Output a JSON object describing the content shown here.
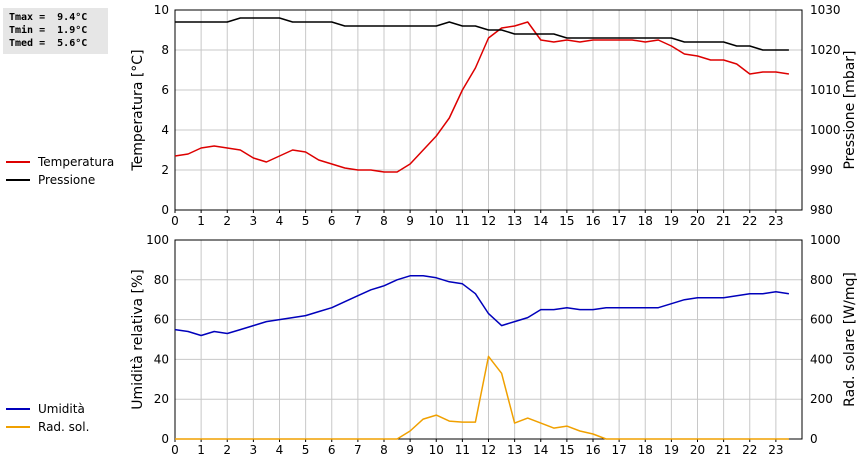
{
  "stats": {
    "tmax": "Tmax =  9.4°C",
    "tmin": "Tmin =  1.9°C",
    "tmed": "Tmed =  5.6°C"
  },
  "colors": {
    "temperature": "#dd0000",
    "pressure": "#000000",
    "humidity": "#0000bb",
    "radiation": "#f0a000",
    "grid": "#c8c8c8"
  },
  "chart_data": [
    {
      "type": "line",
      "xlim": [
        0,
        24
      ],
      "xticks": [
        "0",
        "1",
        "2",
        "3",
        "4",
        "5",
        "6",
        "7",
        "8",
        "9",
        "10",
        "11",
        "12",
        "13",
        "14",
        "15",
        "16",
        "17",
        "18",
        "19",
        "20",
        "21",
        "22",
        "23"
      ],
      "grid": true,
      "ylabel": "Temperatura [°C]",
      "ylim": [
        0,
        10
      ],
      "yticks": [
        "0",
        "2",
        "4",
        "6",
        "8",
        "10"
      ],
      "y2label": "Pressione [mbar]",
      "y2lim": [
        980,
        1030
      ],
      "y2ticks": [
        "980",
        "990",
        "1000",
        "1010",
        "1020",
        "1030"
      ],
      "legend": [
        "Temperatura",
        "Pressione"
      ],
      "series": [
        {
          "name": "Temperatura",
          "axis": "left",
          "x": [
            0,
            0.5,
            1,
            1.5,
            2,
            2.5,
            3,
            3.5,
            4,
            4.5,
            5,
            5.5,
            6,
            6.5,
            7,
            7.5,
            8,
            8.5,
            9,
            9.5,
            10,
            10.5,
            11,
            11.5,
            12,
            12.5,
            13,
            13.5,
            14,
            14.5,
            15,
            15.5,
            16,
            16.5,
            17,
            17.5,
            18,
            18.5,
            19,
            19.5,
            20,
            20.5,
            21,
            21.5,
            22,
            22.5,
            23,
            23.5
          ],
          "values": [
            2.7,
            2.8,
            3.1,
            3.2,
            3.1,
            3.0,
            2.6,
            2.4,
            2.7,
            3.0,
            2.9,
            2.5,
            2.3,
            2.1,
            2.0,
            2.0,
            1.9,
            1.9,
            2.3,
            3.0,
            3.7,
            4.6,
            6.0,
            7.1,
            8.6,
            9.1,
            9.2,
            9.4,
            8.5,
            8.4,
            8.5,
            8.4,
            8.5,
            8.5,
            8.5,
            8.5,
            8.4,
            8.5,
            8.2,
            7.8,
            7.7,
            7.5,
            7.5,
            7.3,
            6.8,
            6.9,
            6.9,
            6.8
          ]
        },
        {
          "name": "Pressione",
          "axis": "right",
          "x": [
            0,
            0.5,
            1,
            1.5,
            2,
            2.5,
            3,
            3.5,
            4,
            4.5,
            5,
            5.5,
            6,
            6.5,
            7,
            7.5,
            8,
            8.5,
            9,
            9.5,
            10,
            10.5,
            11,
            11.5,
            12,
            12.5,
            13,
            13.5,
            14,
            14.5,
            15,
            15.5,
            16,
            16.5,
            17,
            17.5,
            18,
            18.5,
            19,
            19.5,
            20,
            20.5,
            21,
            21.5,
            22,
            22.5,
            23,
            23.5
          ],
          "values": [
            1027,
            1027,
            1027,
            1027,
            1027,
            1028,
            1028,
            1028,
            1028,
            1027,
            1027,
            1027,
            1027,
            1026,
            1026,
            1026,
            1026,
            1026,
            1026,
            1026,
            1026,
            1027,
            1026,
            1026,
            1025,
            1025,
            1024,
            1024,
            1024,
            1024,
            1023,
            1023,
            1023,
            1023,
            1023,
            1023,
            1023,
            1023,
            1023,
            1022,
            1022,
            1022,
            1022,
            1021,
            1021,
            1020,
            1020,
            1020
          ]
        }
      ]
    },
    {
      "type": "line",
      "xlim": [
        0,
        24
      ],
      "xticks": [
        "0",
        "1",
        "2",
        "3",
        "4",
        "5",
        "6",
        "7",
        "8",
        "9",
        "10",
        "11",
        "12",
        "13",
        "14",
        "15",
        "16",
        "17",
        "18",
        "19",
        "20",
        "21",
        "22",
        "23"
      ],
      "grid": true,
      "ylabel": "Umidità relativa [%]",
      "ylim": [
        0,
        100
      ],
      "yticks": [
        "0",
        "20",
        "40",
        "60",
        "80",
        "100"
      ],
      "y2label": "Rad. solare [W/mq]",
      "y2lim": [
        0,
        1000
      ],
      "y2ticks": [
        "0",
        "200",
        "400",
        "600",
        "800",
        "1000"
      ],
      "legend": [
        "Umidità",
        "Rad. sol."
      ],
      "series": [
        {
          "name": "Umidità",
          "axis": "left",
          "x": [
            0,
            0.5,
            1,
            1.5,
            2,
            2.5,
            3,
            3.5,
            4,
            4.5,
            5,
            5.5,
            6,
            6.5,
            7,
            7.5,
            8,
            8.5,
            9,
            9.5,
            10,
            10.5,
            11,
            11.5,
            12,
            12.5,
            13,
            13.5,
            14,
            14.5,
            15,
            15.5,
            16,
            16.5,
            17,
            17.5,
            18,
            18.5,
            19,
            19.5,
            20,
            20.5,
            21,
            21.5,
            22,
            22.5,
            23,
            23.5
          ],
          "values": [
            55,
            54,
            52,
            54,
            53,
            55,
            57,
            59,
            60,
            61,
            62,
            64,
            66,
            69,
            72,
            75,
            77,
            80,
            82,
            82,
            81,
            79,
            78,
            73,
            63,
            57,
            59,
            61,
            65,
            65,
            66,
            65,
            65,
            66,
            66,
            66,
            66,
            66,
            68,
            70,
            71,
            71,
            71,
            72,
            73,
            73,
            74,
            73
          ]
        },
        {
          "name": "Rad. sol.",
          "axis": "right",
          "x": [
            0,
            0.5,
            1,
            1.5,
            2,
            2.5,
            3,
            3.5,
            4,
            4.5,
            5,
            5.5,
            6,
            6.5,
            7,
            7.5,
            8,
            8.5,
            9,
            9.5,
            10,
            10.5,
            11,
            11.5,
            12,
            12.5,
            13,
            13.5,
            14,
            14.5,
            15,
            15.5,
            16,
            16.5,
            17,
            17.5,
            18,
            18.5,
            19,
            19.5,
            20,
            20.5,
            21,
            21.5,
            22,
            22.5,
            23,
            23.5
          ],
          "values": [
            0,
            0,
            0,
            0,
            0,
            0,
            0,
            0,
            0,
            0,
            0,
            0,
            0,
            0,
            0,
            0,
            0,
            0,
            40,
            100,
            120,
            90,
            85,
            85,
            415,
            330,
            80,
            105,
            80,
            55,
            65,
            40,
            25,
            0,
            0,
            0,
            0,
            0,
            0,
            0,
            0,
            0,
            0,
            0,
            0,
            0,
            0,
            0
          ]
        }
      ]
    }
  ]
}
